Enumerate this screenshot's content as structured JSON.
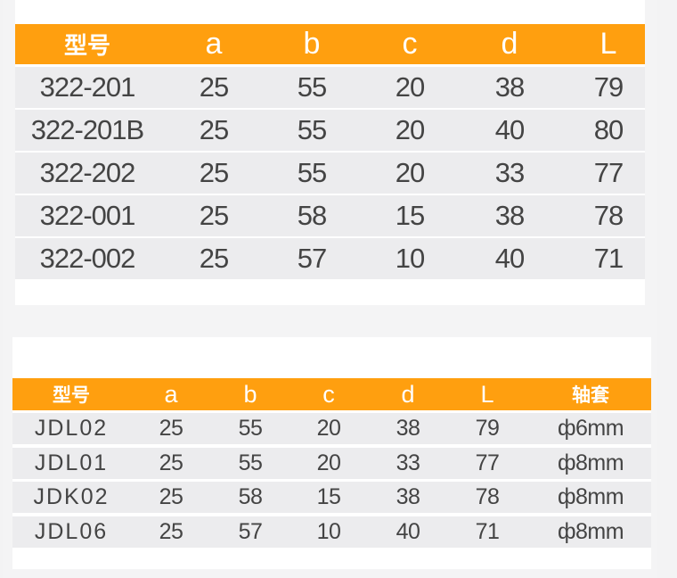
{
  "table1": {
    "headers": [
      "型号",
      "a",
      "b",
      "c",
      "d",
      "L"
    ],
    "rows": [
      [
        "322-201",
        "25",
        "55",
        "20",
        "38",
        "79"
      ],
      [
        "322-201B",
        "25",
        "55",
        "20",
        "40",
        "80"
      ],
      [
        "322-202",
        "25",
        "55",
        "20",
        "33",
        "77"
      ],
      [
        "322-001",
        "25",
        "58",
        "15",
        "38",
        "78"
      ],
      [
        "322-002",
        "25",
        "57",
        "10",
        "40",
        "71"
      ]
    ]
  },
  "table2": {
    "headers": [
      "型号",
      "a",
      "b",
      "c",
      "d",
      "L",
      "轴套"
    ],
    "rows": [
      [
        "JDL02",
        "25",
        "55",
        "20",
        "38",
        "79",
        "ф6mm"
      ],
      [
        "JDL01",
        "25",
        "55",
        "20",
        "33",
        "77",
        "ф8mm"
      ],
      [
        "JDK02",
        "25",
        "58",
        "15",
        "38",
        "78",
        "ф8mm"
      ],
      [
        "JDL06",
        "25",
        "57",
        "10",
        "40",
        "71",
        "ф8mm"
      ]
    ]
  },
  "colors": {
    "header": "#ff9f0f",
    "row": "#ececee",
    "text": "#444444"
  }
}
